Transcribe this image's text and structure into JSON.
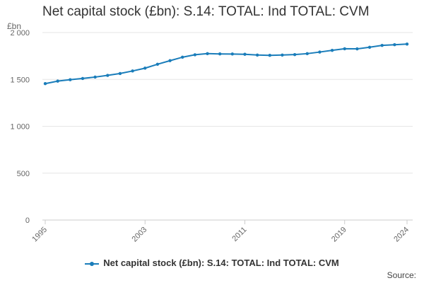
{
  "chart_data": {
    "type": "line",
    "title": "Net capital stock (£bn): S.14: TOTAL: Ind TOTAL: CVM",
    "ylabel": "£bn",
    "xlabel": "",
    "source_label": "Source:",
    "ylim": [
      0,
      2000
    ],
    "xlim": [
      1995,
      2024
    ],
    "y_ticks": [
      0,
      500,
      1000,
      1500,
      2000
    ],
    "y_tick_labels": [
      "0",
      "500",
      "1 000",
      "1 500",
      "2 000"
    ],
    "x_ticks": [
      "1995",
      "2003",
      "2011",
      "2019",
      "2024"
    ],
    "grid": true,
    "legend_position": "bottom",
    "color": "#1a7dba",
    "series": [
      {
        "name": "Net capital stock (£bn): S.14: TOTAL: Ind TOTAL: CVM",
        "x": [
          1995,
          1996,
          1997,
          1998,
          1999,
          2000,
          2001,
          2002,
          2003,
          2004,
          2005,
          2006,
          2007,
          2008,
          2009,
          2010,
          2011,
          2012,
          2013,
          2014,
          2015,
          2016,
          2017,
          2018,
          2019,
          2020,
          2021,
          2022,
          2023,
          2024
        ],
        "values": [
          1455,
          1482,
          1497,
          1510,
          1525,
          1543,
          1563,
          1590,
          1620,
          1662,
          1700,
          1737,
          1763,
          1775,
          1772,
          1771,
          1768,
          1760,
          1757,
          1760,
          1765,
          1775,
          1792,
          1810,
          1827,
          1826,
          1843,
          1863,
          1870,
          1877
        ]
      }
    ]
  }
}
